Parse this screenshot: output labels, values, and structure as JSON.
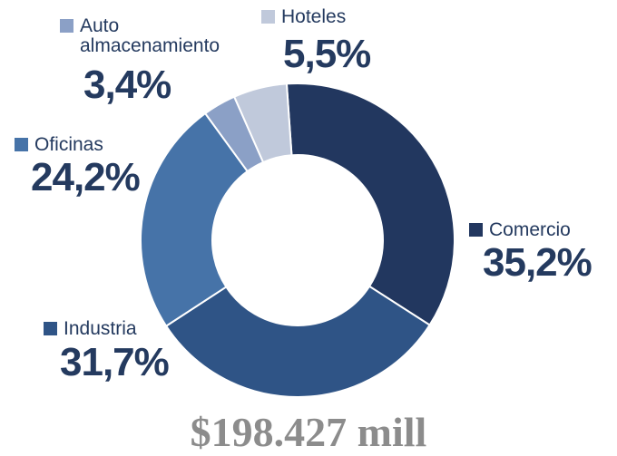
{
  "chart_data": {
    "type": "donut",
    "categories": [
      "Comercio",
      "Industria",
      "Oficinas",
      "Auto almacenamiento",
      "Hoteles"
    ],
    "values": [
      35.2,
      31.7,
      24.2,
      3.4,
      5.5
    ],
    "value_labels": [
      "35,2%",
      "31,7%",
      "24,2%",
      "3,4%",
      "5,5%"
    ],
    "colors": [
      "#22375f",
      "#2f5486",
      "#4673a8",
      "#8ba0c6",
      "#c0c9db"
    ],
    "total": "$198.427 mill"
  }
}
